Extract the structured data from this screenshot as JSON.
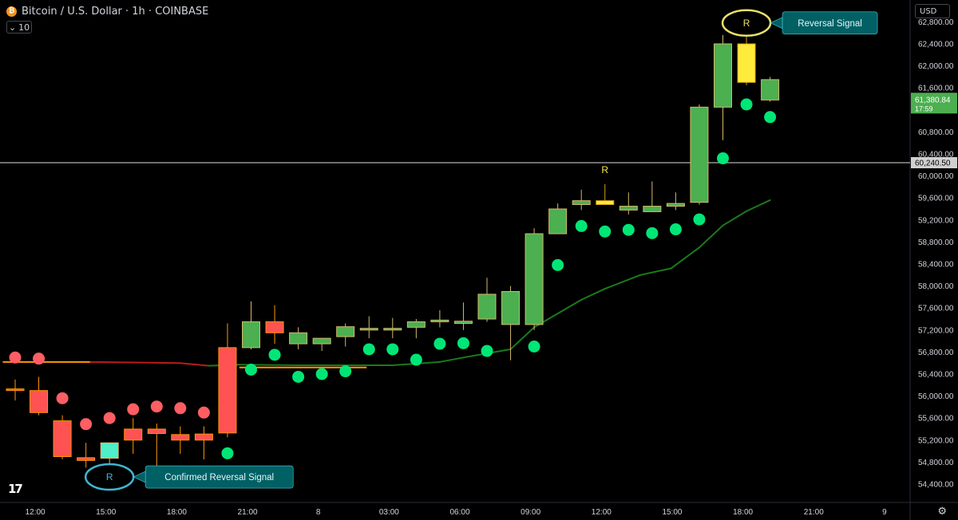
{
  "header": {
    "title": "Bitcoin / U.S. Dollar · 1h · COINBASE",
    "icon": "bitcoin-icon",
    "period": "10"
  },
  "currency": "USD",
  "colors": {
    "bull": "#4caf50",
    "bear": "#ff5252",
    "signal": "#ffeb3b",
    "confirm": "#4ff0c8",
    "dot_green": "#00e676",
    "dot_red": "#ff5e63",
    "line_orange": "#ff9800",
    "line_red": "#b71c1c",
    "line_green": "#1b7a1b",
    "callout": "#006064",
    "hline": "#b0b0b0"
  },
  "chart_data": {
    "type": "candlestick",
    "x_ticks": [
      {
        "i": 0.85,
        "label": "12:00"
      },
      {
        "i": 3.85,
        "label": "15:00"
      },
      {
        "i": 6.85,
        "label": "18:00"
      },
      {
        "i": 9.85,
        "label": "21:00"
      },
      {
        "i": 12.85,
        "label": "8"
      },
      {
        "i": 15.85,
        "label": "03:00"
      },
      {
        "i": 18.85,
        "label": "06:00"
      },
      {
        "i": 21.85,
        "label": "09:00"
      },
      {
        "i": 24.85,
        "label": "12:00"
      },
      {
        "i": 27.85,
        "label": "15:00"
      },
      {
        "i": 30.85,
        "label": "18:00"
      },
      {
        "i": 33.85,
        "label": "21:00"
      },
      {
        "i": 36.85,
        "label": "9"
      }
    ],
    "y_ticks": [
      "62,800.00",
      "62,400.00",
      "62,000.00",
      "61,600.00",
      "60,800.00",
      "60,400.00",
      "60,000.00",
      "59,600.00",
      "59,200.00",
      "58,800.00",
      "58,400.00",
      "58,000.00",
      "57,600.00",
      "57,200.00",
      "56,800.00",
      "56,400.00",
      "56,000.00",
      "55,600.00",
      "55,200.00",
      "54,800.00",
      "54,400.00"
    ],
    "ylim": [
      54200,
      62900
    ],
    "price_label": {
      "value": "61,380.84",
      "sub": "17:59",
      "price": 61380.84
    },
    "hline_label": {
      "value": "60,240.50",
      "price": 60240.5
    },
    "candles": [
      {
        "o": 56130,
        "h": 56300,
        "l": 55920,
        "c": 56100,
        "t": "bear"
      },
      {
        "o": 56100,
        "h": 56350,
        "l": 55650,
        "c": 55700,
        "t": "bear"
      },
      {
        "o": 55550,
        "h": 55650,
        "l": 54850,
        "c": 54900,
        "t": "bear"
      },
      {
        "o": 54880,
        "h": 55150,
        "l": 54700,
        "c": 54830,
        "t": "bear"
      },
      {
        "o": 54870,
        "h": 55150,
        "l": 54680,
        "c": 55150,
        "t": "confirm"
      },
      {
        "o": 55400,
        "h": 55600,
        "l": 54950,
        "c": 55200,
        "t": "bear"
      },
      {
        "o": 55400,
        "h": 55500,
        "l": 54700,
        "c": 55320,
        "t": "bear"
      },
      {
        "o": 55300,
        "h": 55450,
        "l": 54950,
        "c": 55200,
        "t": "bear"
      },
      {
        "o": 55310,
        "h": 55450,
        "l": 54850,
        "c": 55200,
        "t": "bear"
      },
      {
        "o": 56880,
        "h": 57320,
        "l": 55250,
        "c": 55330,
        "t": "bear"
      },
      {
        "o": 56880,
        "h": 57720,
        "l": 56850,
        "c": 57350,
        "t": "bull"
      },
      {
        "o": 57350,
        "h": 57650,
        "l": 56950,
        "c": 57150,
        "t": "bear"
      },
      {
        "o": 56950,
        "h": 57250,
        "l": 56850,
        "c": 57150,
        "t": "bull"
      },
      {
        "o": 56950,
        "h": 57050,
        "l": 56820,
        "c": 57050,
        "t": "bull"
      },
      {
        "o": 57080,
        "h": 57320,
        "l": 56900,
        "c": 57260,
        "t": "bull"
      },
      {
        "o": 57200,
        "h": 57450,
        "l": 57050,
        "c": 57230,
        "t": "bull"
      },
      {
        "o": 57200,
        "h": 57420,
        "l": 57050,
        "c": 57230,
        "t": "bull"
      },
      {
        "o": 57250,
        "h": 57400,
        "l": 57050,
        "c": 57350,
        "t": "bull"
      },
      {
        "o": 57350,
        "h": 57560,
        "l": 57250,
        "c": 57380,
        "t": "bull"
      },
      {
        "o": 57320,
        "h": 57700,
        "l": 57200,
        "c": 57360,
        "t": "bull"
      },
      {
        "o": 57400,
        "h": 58150,
        "l": 57350,
        "c": 57850,
        "t": "bull"
      },
      {
        "o": 57300,
        "h": 58000,
        "l": 56650,
        "c": 57900,
        "t": "bull"
      },
      {
        "o": 57300,
        "h": 59050,
        "l": 57200,
        "c": 58950,
        "t": "bull"
      },
      {
        "o": 58950,
        "h": 59500,
        "l": 58950,
        "c": 59400,
        "t": "bull"
      },
      {
        "o": 59480,
        "h": 59750,
        "l": 59380,
        "c": 59550,
        "t": "bull"
      },
      {
        "o": 59550,
        "h": 59850,
        "l": 59480,
        "c": 59480,
        "t": "signal"
      },
      {
        "o": 59380,
        "h": 59700,
        "l": 59300,
        "c": 59450,
        "t": "bull"
      },
      {
        "o": 59350,
        "h": 59900,
        "l": 59350,
        "c": 59450,
        "t": "bull"
      },
      {
        "o": 59450,
        "h": 59700,
        "l": 59380,
        "c": 59500,
        "t": "bull"
      },
      {
        "o": 59520,
        "h": 61300,
        "l": 59480,
        "c": 61250,
        "t": "bull"
      },
      {
        "o": 61250,
        "h": 62560,
        "l": 60650,
        "c": 62400,
        "t": "bull"
      },
      {
        "o": 62400,
        "h": 62900,
        "l": 61650,
        "c": 61700,
        "t": "signal"
      },
      {
        "o": 61380,
        "h": 61800,
        "l": 61350,
        "c": 61750,
        "t": "bull"
      }
    ],
    "dots": [
      {
        "i": 0,
        "v": 56700,
        "c": "red"
      },
      {
        "i": 1,
        "v": 56680,
        "c": "red"
      },
      {
        "i": 2,
        "v": 55960,
        "c": "red"
      },
      {
        "i": 3,
        "v": 55490,
        "c": "red"
      },
      {
        "i": 4,
        "v": 55600,
        "c": "red"
      },
      {
        "i": 5,
        "v": 55760,
        "c": "red"
      },
      {
        "i": 6,
        "v": 55810,
        "c": "red"
      },
      {
        "i": 7,
        "v": 55780,
        "c": "red"
      },
      {
        "i": 8,
        "v": 55700,
        "c": "red"
      },
      {
        "i": 9,
        "v": 54960,
        "c": "green"
      },
      {
        "i": 10,
        "v": 56480,
        "c": "green"
      },
      {
        "i": 11,
        "v": 56750,
        "c": "green"
      },
      {
        "i": 12,
        "v": 56350,
        "c": "green"
      },
      {
        "i": 13,
        "v": 56400,
        "c": "green"
      },
      {
        "i": 14,
        "v": 56450,
        "c": "green"
      },
      {
        "i": 15,
        "v": 56850,
        "c": "green"
      },
      {
        "i": 16,
        "v": 56850,
        "c": "green"
      },
      {
        "i": 17,
        "v": 56660,
        "c": "green"
      },
      {
        "i": 18,
        "v": 56950,
        "c": "green"
      },
      {
        "i": 19,
        "v": 56960,
        "c": "green"
      },
      {
        "i": 20,
        "v": 56820,
        "c": "green"
      },
      {
        "i": 22,
        "v": 56900,
        "c": "green"
      },
      {
        "i": 23,
        "v": 58380,
        "c": "green"
      },
      {
        "i": 24,
        "v": 59090,
        "c": "green"
      },
      {
        "i": 25,
        "v": 58990,
        "c": "green"
      },
      {
        "i": 26,
        "v": 59020,
        "c": "green"
      },
      {
        "i": 27,
        "v": 58960,
        "c": "green"
      },
      {
        "i": 28,
        "v": 59030,
        "c": "green"
      },
      {
        "i": 29,
        "v": 59210,
        "c": "green"
      },
      {
        "i": 30,
        "v": 60320,
        "c": "green"
      },
      {
        "i": 31,
        "v": 61300,
        "c": "green"
      },
      {
        "i": 32,
        "v": 61070,
        "c": "green"
      }
    ],
    "trend_line": [
      {
        "i": -0.5,
        "v": 56620,
        "c": "orange"
      },
      {
        "i": 2,
        "v": 56620,
        "c": "orange"
      },
      {
        "i": 3.2,
        "v": 56620,
        "c": "red"
      },
      {
        "i": 7,
        "v": 56600,
        "c": "red"
      },
      {
        "i": 8.2,
        "v": 56550,
        "c": "green"
      },
      {
        "i": 9.5,
        "v": 56570,
        "c": "green"
      },
      {
        "i": 12,
        "v": 56560,
        "c": "green"
      },
      {
        "i": 16,
        "v": 56560,
        "c": "green"
      },
      {
        "i": 18,
        "v": 56620,
        "c": "green"
      },
      {
        "i": 19,
        "v": 56700,
        "c": "green"
      },
      {
        "i": 21,
        "v": 56850,
        "c": "green"
      },
      {
        "i": 22,
        "v": 57250,
        "c": "green"
      },
      {
        "i": 24,
        "v": 57750,
        "c": "green"
      },
      {
        "i": 25,
        "v": 57950,
        "c": "green"
      },
      {
        "i": 26.5,
        "v": 58200,
        "c": "green"
      },
      {
        "i": 27.8,
        "v": 58320,
        "c": "green"
      },
      {
        "i": 29,
        "v": 58700,
        "c": "green"
      },
      {
        "i": 30,
        "v": 59100,
        "c": "green"
      },
      {
        "i": 31,
        "v": 59360,
        "c": "green"
      },
      {
        "i": 32,
        "v": 59560,
        "c": "green"
      }
    ],
    "support_line": {
      "i0": 9.5,
      "i1": 14.9,
      "v": 56520
    },
    "signal_label": {
      "i": 25,
      "v": 60050,
      "text": "R"
    }
  },
  "annotations": [
    {
      "name": "reversal-signal",
      "ellipse_i": 31,
      "ellipse_v": 62780,
      "ellipse_text": "R",
      "label": "Reversal Signal",
      "color": "#e8e06a"
    },
    {
      "name": "confirmed-reversal-signal",
      "ellipse_i": 4,
      "ellipse_v": 54530,
      "ellipse_text": "R",
      "label": "Confirmed Reversal Signal",
      "color": "#3fb6d3"
    }
  ]
}
